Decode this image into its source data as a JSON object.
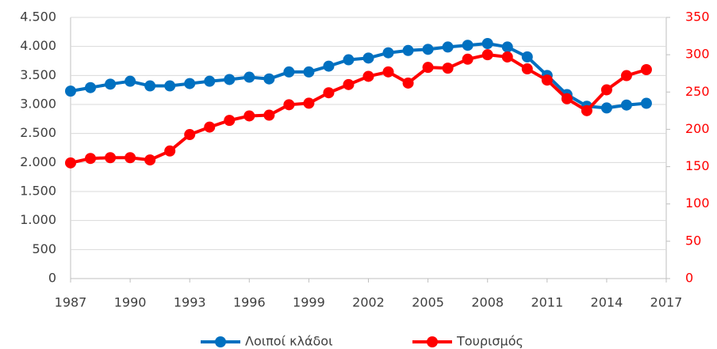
{
  "chart_data": {
    "type": "line",
    "x": [
      1987,
      1988,
      1989,
      1990,
      1991,
      1992,
      1993,
      1994,
      1995,
      1996,
      1997,
      1998,
      1999,
      2000,
      2001,
      2002,
      2003,
      2004,
      2005,
      2006,
      2007,
      2008,
      2009,
      2010,
      2011,
      2012,
      2013,
      2014,
      2015,
      2016
    ],
    "series": [
      {
        "name": "Λοιποί κλάδοι",
        "color": "#0070c0",
        "values": [
          3230,
          3290,
          3350,
          3400,
          3320,
          3320,
          3360,
          3400,
          3430,
          3470,
          3440,
          3560,
          3560,
          3660,
          3770,
          3800,
          3890,
          3930,
          3950,
          3990,
          4020,
          4050,
          3990,
          3820,
          3500,
          3170,
          2970,
          2940,
          2990,
          3020
        ]
      },
      {
        "name": "Τουρισμός",
        "color": "#ff0000",
        "axis": "y2",
        "values": [
          155,
          161,
          162,
          162,
          159,
          171,
          193,
          203,
          212,
          218,
          219,
          233,
          235,
          249,
          260,
          271,
          277,
          262,
          283,
          282,
          294,
          300,
          297,
          281,
          266,
          241,
          225,
          253,
          272,
          280
        ]
      }
    ],
    "xlim": [
      1987,
      2017
    ],
    "xticks": [
      1987,
      1990,
      1993,
      1996,
      1999,
      2002,
      2005,
      2008,
      2011,
      2014,
      2017
    ],
    "ylim": [
      0,
      4500
    ],
    "yticks": [
      0,
      500,
      {
        "value": 1000,
        "label": "1.000"
      },
      {
        "value": 1500,
        "label": "1.500"
      },
      {
        "value": 2000,
        "label": "2.000"
      },
      {
        "value": 2500,
        "label": "2.500"
      },
      {
        "value": 3000,
        "label": "3.000"
      },
      {
        "value": 3500,
        "label": "3.500"
      },
      {
        "value": 4000,
        "label": "4.000"
      },
      {
        "value": 4500,
        "label": "4.500"
      }
    ],
    "y2lim": [
      0,
      350
    ],
    "y2ticks": [
      0,
      50,
      100,
      150,
      200,
      250,
      300,
      350
    ],
    "grid": true
  }
}
